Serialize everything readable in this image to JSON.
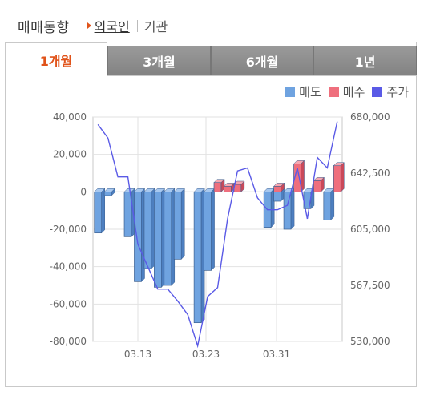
{
  "header": {
    "title": "매매동향",
    "links": [
      "외국인",
      "기관"
    ]
  },
  "tabs": [
    {
      "label": "1개월",
      "active": true
    },
    {
      "label": "3개월",
      "active": false
    },
    {
      "label": "6개월",
      "active": false
    },
    {
      "label": "1년",
      "active": false
    }
  ],
  "legend": [
    {
      "label": "매도",
      "color": "#6fa3e0"
    },
    {
      "label": "매수",
      "color": "#ef6f7d"
    },
    {
      "label": "주가",
      "color": "#5a5ae6"
    }
  ],
  "chart_data": {
    "type": "bar",
    "x_ticks": [
      "03.13",
      "03.23",
      "03.31"
    ],
    "y_left": {
      "min": -80000,
      "max": 40000,
      "ticks": [
        "40,000",
        "20,000",
        "0",
        "-20,000",
        "-40,000",
        "-60,000",
        "-80,000"
      ]
    },
    "y_right": {
      "min": 530000,
      "max": 680000,
      "ticks": [
        "680,000",
        "642,500",
        "605,000",
        "567,500",
        "530,000"
      ]
    },
    "series": [
      {
        "name": "매도",
        "color": "#6fa3e0",
        "values": [
          -22000,
          -2000,
          0,
          -24000,
          -48000,
          -41000,
          -51000,
          -50000,
          -36000,
          0,
          -70000,
          -42000,
          0,
          0,
          0,
          0,
          0,
          -19000,
          -5000,
          -20000,
          0,
          -9000,
          0,
          -15000,
          0
        ]
      },
      {
        "name": "매수",
        "color": "#ef6f7d",
        "values": [
          0,
          0,
          0,
          0,
          0,
          0,
          0,
          0,
          0,
          0,
          0,
          0,
          5000,
          3000,
          4000,
          0,
          0,
          0,
          3000,
          0,
          15000,
          0,
          6000,
          0,
          14000
        ]
      },
      {
        "name": "주가",
        "color": "#5a5ae6",
        "x": [
          0,
          1,
          2,
          3,
          4,
          5,
          6,
          7,
          8,
          9,
          10,
          11,
          12,
          13,
          14,
          15,
          16,
          17,
          18,
          19,
          20,
          21,
          22,
          23,
          24
        ],
        "values": [
          675000,
          666000,
          640000,
          640000,
          595000,
          580000,
          565000,
          565000,
          557000,
          548000,
          527000,
          560000,
          566000,
          612000,
          644000,
          646000,
          626000,
          618000,
          618000,
          621000,
          646000,
          612000,
          653000,
          646000,
          677000
        ]
      }
    ]
  }
}
